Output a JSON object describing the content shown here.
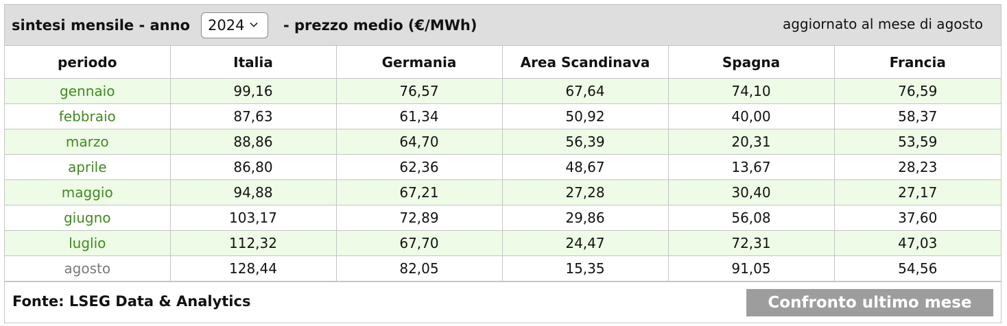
{
  "header": {
    "title": "sintesi mensile - anno",
    "year_selected": "2024",
    "subtitle": "- prezzo medio (€/MWh)",
    "updated": "aggiornato al mese di agosto"
  },
  "table": {
    "columns": [
      "periodo",
      "Italia",
      "Germania",
      "Area Scandinava",
      "Spagna",
      "Francia"
    ],
    "rows": [
      {
        "month": "gennaio",
        "values": [
          "99,16",
          "76,57",
          "67,64",
          "74,10",
          "76,59"
        ]
      },
      {
        "month": "febbraio",
        "values": [
          "87,63",
          "61,34",
          "50,92",
          "40,00",
          "58,37"
        ]
      },
      {
        "month": "marzo",
        "values": [
          "88,86",
          "64,70",
          "56,39",
          "20,31",
          "53,59"
        ]
      },
      {
        "month": "aprile",
        "values": [
          "86,80",
          "62,36",
          "48,67",
          "13,67",
          "28,23"
        ]
      },
      {
        "month": "maggio",
        "values": [
          "94,88",
          "67,21",
          "27,28",
          "30,40",
          "27,17"
        ]
      },
      {
        "month": "giugno",
        "values": [
          "103,17",
          "72,89",
          "29,86",
          "56,08",
          "37,60"
        ]
      },
      {
        "month": "luglio",
        "values": [
          "112,32",
          "67,70",
          "24,47",
          "72,31",
          "47,03"
        ]
      },
      {
        "month": "agosto",
        "values": [
          "128,44",
          "82,05",
          "15,35",
          "91,05",
          "54,56"
        ]
      }
    ]
  },
  "footer": {
    "source": "Fonte: LSEG Data & Analytics",
    "compare_button": "Confronto ultimo mese"
  },
  "colors": {
    "header_bg": "#dedede",
    "row_alt_bg": "#eefbe6",
    "month_text": "#3f8a1f",
    "current_month_text": "#7a7a7a",
    "button_bg": "#9d9d9d"
  }
}
